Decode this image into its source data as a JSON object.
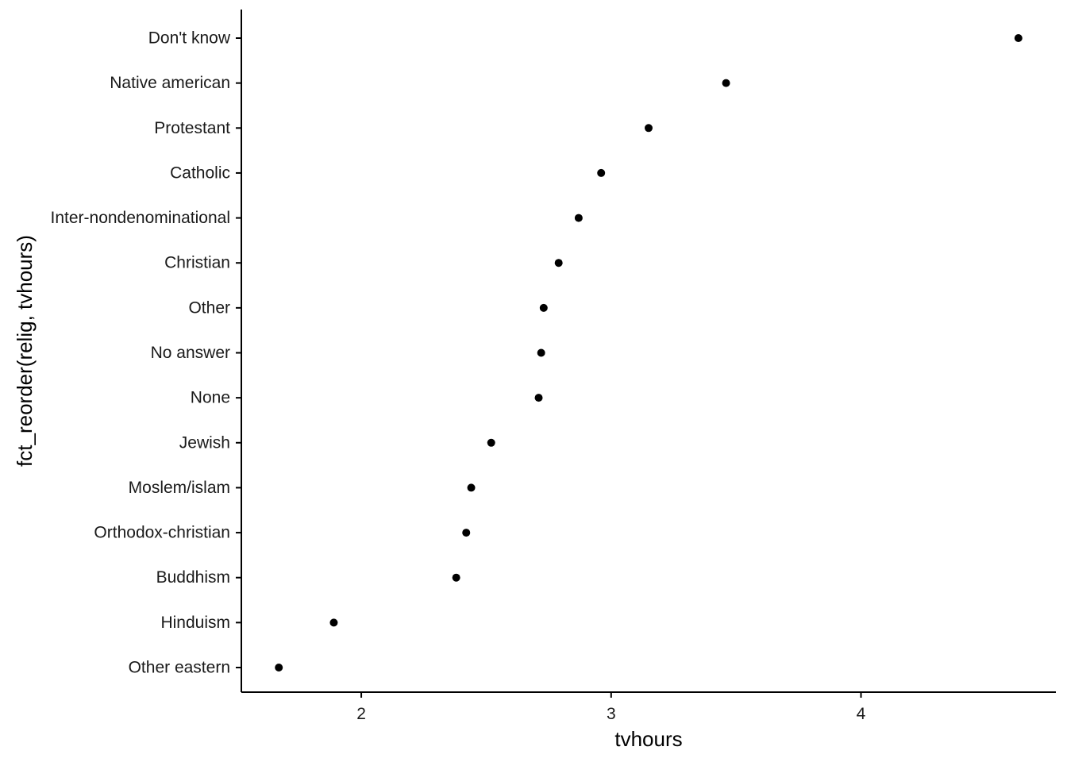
{
  "chart_data": {
    "type": "scatter",
    "title": "",
    "xlabel": "tvhours",
    "ylabel": "fct_reorder(relig, tvhours)",
    "xlim": [
      1.52,
      4.78
    ],
    "x_ticks": [
      2,
      3,
      4
    ],
    "grid": false,
    "legend": "none",
    "point_color": "#000000",
    "axis_color": "#000000",
    "categories": [
      "Other eastern",
      "Hinduism",
      "Buddhism",
      "Orthodox-christian",
      "Moslem/islam",
      "Jewish",
      "None",
      "No answer",
      "Other",
      "Christian",
      "Inter-nondenominational",
      "Catholic",
      "Protestant",
      "Native american",
      "Don't know"
    ],
    "values": [
      1.67,
      1.89,
      2.38,
      2.42,
      2.44,
      2.52,
      2.71,
      2.72,
      2.73,
      2.79,
      2.87,
      2.96,
      3.15,
      3.46,
      4.63
    ]
  }
}
